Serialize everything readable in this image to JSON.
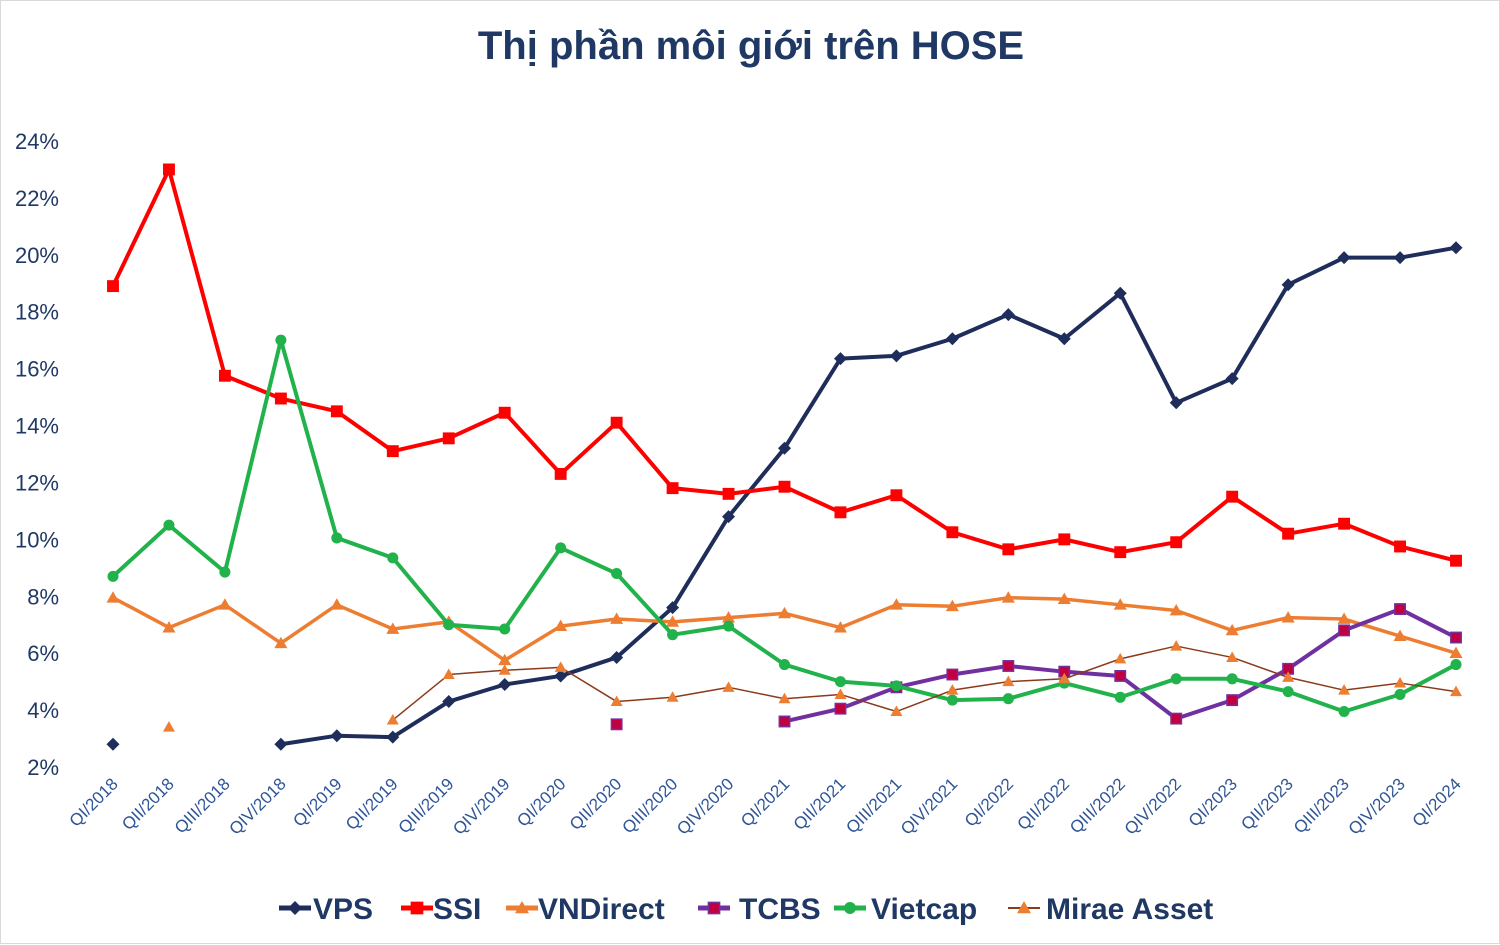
{
  "chart_data": {
    "type": "line",
    "title": "Thị phần môi giới trên HOSE",
    "xlabel": "",
    "ylabel": "",
    "ylim": [
      2,
      24
    ],
    "y_ticks": [
      "2%",
      "4%",
      "6%",
      "8%",
      "10%",
      "12%",
      "14%",
      "16%",
      "18%",
      "20%",
      "22%",
      "24%"
    ],
    "grid": false,
    "legend_position": "bottom",
    "categories": [
      "QI/2018",
      "QII/2018",
      "QIII/2018",
      "QIV/2018",
      "QI/2019",
      "QII/2019",
      "QIII/2019",
      "QIV/2019",
      "QI/2020",
      "QII/2020",
      "QIII/2020",
      "QIV/2020",
      "QI/2021",
      "QII/2021",
      "QIII/2021",
      "QIV/2021",
      "QI/2022",
      "QII/2022",
      "QIII/2022",
      "QIV/2022",
      "QI/2023",
      "QII/2023",
      "QIII/2023",
      "QIV/2023",
      "QI/2024"
    ],
    "series": [
      {
        "name": "VPS",
        "color": "#1f2d5a",
        "marker": "diamond",
        "line_width": 4,
        "values": [
          2.8,
          null,
          null,
          2.8,
          3.1,
          3.05,
          4.3,
          4.9,
          5.2,
          5.85,
          7.6,
          10.8,
          13.2,
          16.35,
          16.45,
          17.05,
          17.9,
          17.05,
          18.65,
          14.8,
          15.65,
          18.95,
          19.9,
          19.9,
          20.25
        ]
      },
      {
        "name": "SSI",
        "color": "#ff0000",
        "marker": "square",
        "line_width": 4,
        "values": [
          18.9,
          23.0,
          15.75,
          14.95,
          14.5,
          13.1,
          13.55,
          14.45,
          12.3,
          14.1,
          11.8,
          11.6,
          11.85,
          10.95,
          11.55,
          10.25,
          9.65,
          10.0,
          9.55,
          9.9,
          11.5,
          10.2,
          10.55,
          9.75,
          9.25
        ]
      },
      {
        "name": "VNDirect",
        "color": "#ed7d31",
        "marker": "triangle",
        "line_width": 3.5,
        "values": [
          7.95,
          6.9,
          7.7,
          6.35,
          7.7,
          6.85,
          7.1,
          5.75,
          6.95,
          7.2,
          7.1,
          7.25,
          7.4,
          6.9,
          7.7,
          7.65,
          7.95,
          7.9,
          7.7,
          7.5,
          6.8,
          7.25,
          7.2,
          6.6,
          6.0
        ]
      },
      {
        "name": "TCBS",
        "color": "#7030a0",
        "marker": "square",
        "marker_fill": "#c00040",
        "line_width": 4,
        "values": [
          null,
          null,
          null,
          null,
          null,
          null,
          null,
          null,
          null,
          3.5,
          null,
          null,
          3.6,
          4.05,
          4.8,
          5.25,
          5.55,
          5.35,
          5.2,
          3.7,
          4.35,
          5.45,
          6.8,
          7.55,
          6.55
        ]
      },
      {
        "name": "Vietcap",
        "color": "#21b24b",
        "marker": "circle",
        "line_width": 4,
        "values": [
          8.7,
          10.5,
          8.85,
          17.0,
          10.05,
          9.35,
          7.0,
          6.85,
          9.7,
          8.8,
          6.65,
          6.95,
          5.6,
          5.0,
          4.85,
          4.35,
          4.4,
          4.95,
          4.45,
          5.1,
          5.1,
          4.65,
          3.95,
          4.55,
          5.6
        ]
      },
      {
        "name": "Mirae Asset",
        "color": "#8b3a1a",
        "marker": "triangle",
        "marker_fill": "#ed7d31",
        "line_width": 1.5,
        "values": [
          null,
          3.4,
          null,
          null,
          null,
          3.65,
          5.25,
          5.4,
          5.5,
          4.3,
          4.45,
          4.8,
          4.4,
          4.55,
          3.95,
          4.7,
          5.0,
          5.1,
          5.8,
          6.25,
          5.85,
          5.15,
          4.7,
          4.95,
          4.65
        ]
      }
    ]
  }
}
